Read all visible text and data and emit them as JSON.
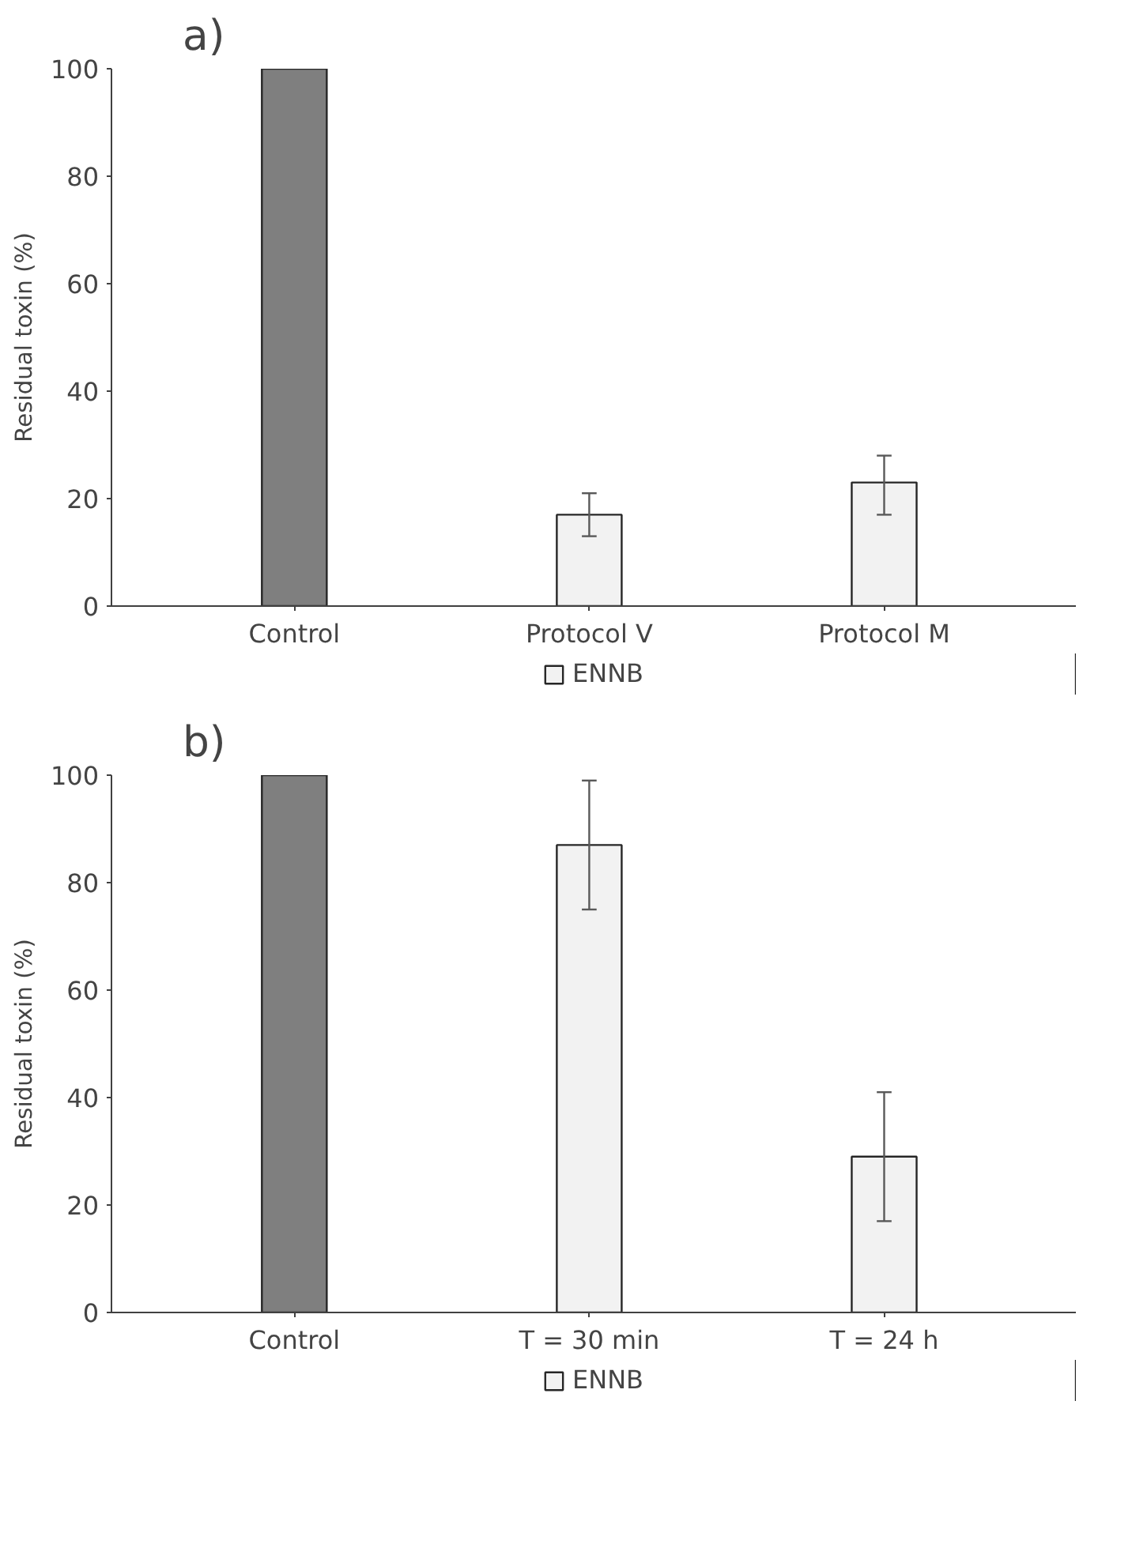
{
  "chart_data": [
    {
      "type": "bar",
      "title": "a)",
      "ylabel": "Residual toxin (%)",
      "categories": [
        "Control",
        "Protocol V",
        "Protocol M"
      ],
      "series": [
        {
          "name": "ENNB",
          "color": "#f2f2f2",
          "colors": [
            "#7f7f7f",
            "#f2f2f2",
            "#f2f2f2"
          ],
          "values": [
            100,
            17,
            23
          ],
          "errors": [
            null,
            [
              13,
              21
            ],
            [
              17,
              28
            ]
          ]
        }
      ],
      "ylim": [
        0,
        100
      ],
      "yticks": [
        0,
        20,
        40,
        60,
        80,
        100
      ],
      "grid": false,
      "legend": "bottom"
    },
    {
      "type": "bar",
      "title": "b)",
      "ylabel": "Residual toxin (%)",
      "categories": [
        "Control",
        "T = 30 min",
        "T = 24 h"
      ],
      "series": [
        {
          "name": "ENNB",
          "color": "#f2f2f2",
          "colors": [
            "#7f7f7f",
            "#f2f2f2",
            "#f2f2f2"
          ],
          "values": [
            100,
            87,
            29
          ],
          "errors": [
            null,
            [
              75,
              99
            ],
            [
              17,
              41
            ]
          ]
        }
      ],
      "ylim": [
        0,
        100
      ],
      "yticks": [
        0,
        20,
        40,
        60,
        80,
        100
      ],
      "grid": false,
      "legend": "bottom"
    }
  ]
}
